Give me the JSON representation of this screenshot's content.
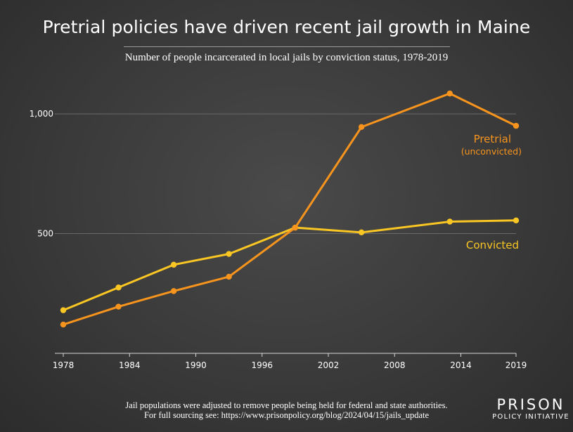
{
  "title": "Pretrial policies have driven recent jail growth in Maine",
  "subtitle": "Number of people incarcerated in local jails by conviction status, 1978-2019",
  "footnote": {
    "line1": "Jail populations were adjusted to remove people being held for federal and state authorities.",
    "line2": "For full sourcing see: https://www.prisonpolicy.org/blog/2024/04/15/jails_update"
  },
  "brand": {
    "top": "PRISON",
    "bottom": "POLICY INITIATIVE"
  },
  "chart_data": {
    "type": "line",
    "title": "Pretrial policies have driven recent jail growth in Maine",
    "subtitle": "Number of people incarcerated in local jails by conviction status, 1978-2019",
    "xlabel": "",
    "ylabel": "",
    "xlim": [
      1978,
      2019
    ],
    "ylim": [
      0,
      1100
    ],
    "x_ticks": [
      1978,
      1984,
      1990,
      1996,
      2002,
      2008,
      2014,
      2019
    ],
    "y_ticks": [
      500,
      1000
    ],
    "y_tick_labels": [
      "500",
      "1,000"
    ],
    "grid": "horizontal",
    "series": [
      {
        "name": "Pretrial",
        "sublabel": "(unconvicted)",
        "color": "#f7941d",
        "x": [
          1978,
          1983,
          1988,
          1993,
          1999,
          2005,
          2013,
          2019
        ],
        "y": [
          120,
          195,
          260,
          320,
          525,
          945,
          1085,
          950
        ]
      },
      {
        "name": "Convicted",
        "color": "#f9c623",
        "x": [
          1978,
          1983,
          1988,
          1993,
          1999,
          2005,
          2013,
          2019
        ],
        "y": [
          180,
          275,
          370,
          415,
          525,
          505,
          550,
          555
        ]
      }
    ]
  }
}
